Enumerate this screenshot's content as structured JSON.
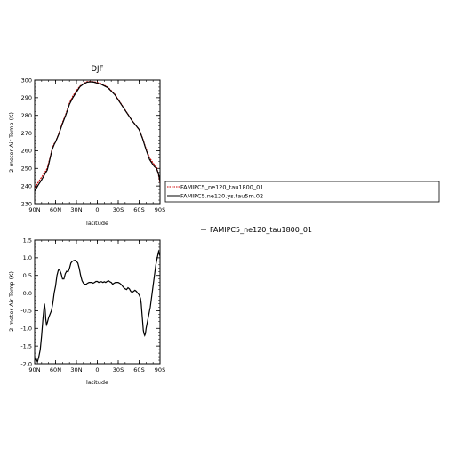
{
  "chart_data": [
    {
      "type": "line",
      "title": "DJF",
      "xlabel": "latitude",
      "ylabel": "2-meter Air Temp (K)",
      "xlim": [
        90,
        -90
      ],
      "ylim": [
        230,
        300
      ],
      "x_ticks": [
        90,
        60,
        30,
        0,
        -30,
        -60,
        -90
      ],
      "x_tick_labels": [
        "90N",
        "60N",
        "30N",
        "0",
        "30S",
        "60S",
        "90S"
      ],
      "y_ticks": [
        230,
        240,
        250,
        260,
        270,
        280,
        290,
        300
      ],
      "y_tick_labels": [
        "230",
        "240",
        "250",
        "260",
        "270",
        "280",
        "290",
        "300"
      ],
      "legend_position": "right",
      "series": [
        {
          "name": "FAMIPC5_ne120_tau1800_01",
          "color": "#cc0000",
          "style": "dashed",
          "x": [
            90,
            85,
            80,
            75,
            72,
            70,
            68,
            65,
            62,
            60,
            55,
            50,
            45,
            40,
            35,
            30,
            25,
            20,
            15,
            10,
            5,
            0,
            -5,
            -10,
            -15,
            -20,
            -25,
            -30,
            -35,
            -40,
            -45,
            -50,
            -55,
            -60,
            -65,
            -70,
            -75,
            -80,
            -82,
            -85,
            -88,
            -90
          ],
          "y": [
            239.0,
            242.0,
            245.0,
            248.0,
            250.0,
            253.0,
            256.0,
            261.0,
            264.0,
            265.0,
            270.0,
            276.0,
            281.0,
            287.0,
            291.0,
            294.0,
            296.5,
            298.0,
            299.0,
            299.2,
            299.0,
            298.5,
            298.0,
            297.0,
            296.0,
            294.0,
            292.0,
            289.0,
            286.0,
            283.0,
            280.0,
            277.0,
            274.5,
            272.0,
            267.0,
            261.0,
            256.0,
            253.0,
            252.0,
            251.0,
            246.0,
            241.5
          ]
        },
        {
          "name": "FAMIPC5.ne120.ys.tau5m.02",
          "color": "#000000",
          "style": "solid",
          "x": [
            90,
            85,
            80,
            75,
            72,
            70,
            68,
            65,
            62,
            60,
            55,
            50,
            45,
            40,
            35,
            30,
            25,
            20,
            15,
            10,
            5,
            0,
            -5,
            -10,
            -15,
            -20,
            -25,
            -30,
            -35,
            -40,
            -45,
            -50,
            -55,
            -60,
            -65,
            -70,
            -75,
            -80,
            -82,
            -85,
            -88,
            -90
          ],
          "y": [
            237.0,
            240.5,
            243.5,
            247.0,
            249.0,
            252.0,
            255.5,
            260.5,
            263.5,
            265.0,
            269.7,
            275.4,
            280.5,
            286.3,
            290.1,
            293.2,
            296.2,
            297.7,
            298.7,
            299.0,
            298.8,
            298.2,
            297.7,
            296.7,
            295.7,
            293.7,
            291.7,
            288.7,
            285.8,
            282.8,
            279.9,
            276.9,
            274.5,
            272.0,
            266.8,
            260.5,
            255.0,
            252.0,
            251.0,
            250.0,
            246.5,
            242.7
          ]
        }
      ]
    },
    {
      "type": "line",
      "xlabel": "latitude",
      "ylabel": "2-meter Air Temp (K)",
      "xlim": [
        90,
        -90
      ],
      "ylim": [
        -2.0,
        1.5
      ],
      "x_ticks": [
        90,
        60,
        30,
        0,
        -30,
        -60,
        -90
      ],
      "x_tick_labels": [
        "90N",
        "60N",
        "30N",
        "0",
        "30S",
        "60S",
        "90S"
      ],
      "y_ticks": [
        -2.0,
        -1.5,
        -1.0,
        -0.5,
        0.0,
        0.5,
        1.0,
        1.5
      ],
      "y_tick_labels": [
        "-2.0",
        "-1.5",
        "-1.0",
        "-0.5",
        "0.0",
        "0.5",
        "1.0",
        "1.5"
      ],
      "legend_position": "right",
      "series": [
        {
          "name": "FAMIPC5_ne120_tau1800_01",
          "color": "#000000",
          "style": "solid",
          "x": [
            90,
            88,
            86,
            84,
            82,
            80,
            78,
            77,
            76,
            75,
            74,
            73,
            72,
            70,
            68,
            66,
            64,
            62,
            60,
            58,
            56,
            54,
            52,
            50,
            48,
            46,
            44,
            42,
            40,
            38,
            36,
            34,
            32,
            30,
            28,
            26,
            24,
            22,
            20,
            18,
            16,
            14,
            12,
            10,
            8,
            6,
            4,
            2,
            0,
            -2,
            -4,
            -6,
            -8,
            -10,
            -12,
            -14,
            -16,
            -18,
            -20,
            -22,
            -24,
            -26,
            -28,
            -30,
            -32,
            -34,
            -36,
            -38,
            -40,
            -42,
            -44,
            -46,
            -48,
            -50,
            -52,
            -54,
            -56,
            -58,
            -60,
            -62,
            -63,
            -64,
            -65,
            -66,
            -67,
            -68,
            -69,
            -70,
            -72,
            -74,
            -76,
            -78,
            -80,
            -82,
            -84,
            -86,
            -88,
            -90
          ],
          "y": [
            -1.9,
            -1.85,
            -1.95,
            -1.8,
            -1.6,
            -1.2,
            -0.7,
            -0.5,
            -0.3,
            -0.45,
            -0.75,
            -0.9,
            -0.85,
            -0.7,
            -0.6,
            -0.5,
            -0.3,
            0.0,
            0.2,
            0.5,
            0.65,
            0.65,
            0.55,
            0.4,
            0.4,
            0.55,
            0.62,
            0.6,
            0.7,
            0.85,
            0.9,
            0.92,
            0.93,
            0.9,
            0.85,
            0.7,
            0.5,
            0.35,
            0.28,
            0.25,
            0.25,
            0.28,
            0.3,
            0.3,
            0.3,
            0.28,
            0.3,
            0.33,
            0.33,
            0.3,
            0.32,
            0.32,
            0.3,
            0.32,
            0.3,
            0.33,
            0.35,
            0.32,
            0.3,
            0.25,
            0.28,
            0.3,
            0.3,
            0.3,
            0.28,
            0.25,
            0.2,
            0.15,
            0.12,
            0.1,
            0.15,
            0.12,
            0.05,
            0.02,
            0.05,
            0.08,
            0.05,
            0.0,
            -0.05,
            -0.15,
            -0.3,
            -0.55,
            -0.8,
            -1.05,
            -1.15,
            -1.2,
            -1.15,
            -1.0,
            -0.8,
            -0.6,
            -0.4,
            -0.1,
            0.2,
            0.5,
            0.8,
            1.0,
            1.18,
            1.05
          ]
        }
      ]
    }
  ]
}
